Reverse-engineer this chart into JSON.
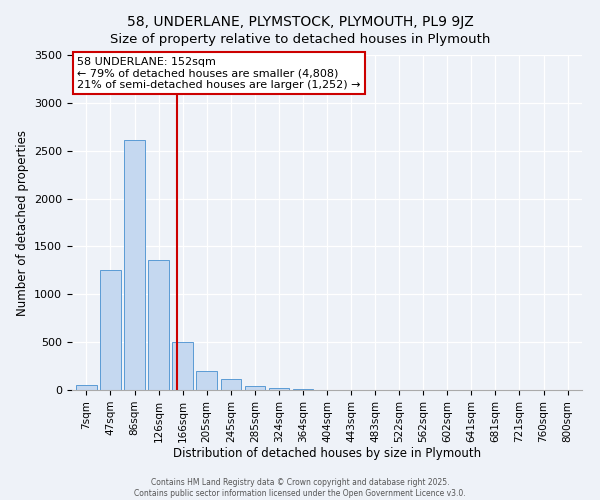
{
  "title": "58, UNDERLANE, PLYMSTOCK, PLYMOUTH, PL9 9JZ",
  "subtitle": "Size of property relative to detached houses in Plymouth",
  "xlabel": "Distribution of detached houses by size in Plymouth",
  "ylabel": "Number of detached properties",
  "bar_labels": [
    "7sqm",
    "47sqm",
    "86sqm",
    "126sqm",
    "166sqm",
    "205sqm",
    "245sqm",
    "285sqm",
    "324sqm",
    "364sqm",
    "404sqm",
    "443sqm",
    "483sqm",
    "522sqm",
    "562sqm",
    "602sqm",
    "641sqm",
    "681sqm",
    "721sqm",
    "760sqm",
    "800sqm"
  ],
  "bar_values": [
    55,
    1255,
    2615,
    1360,
    500,
    200,
    110,
    45,
    20,
    8,
    4,
    2,
    1,
    0,
    0,
    0,
    0,
    0,
    0,
    0,
    0
  ],
  "bar_color": "#c5d8f0",
  "bar_edge_color": "#5b9bd5",
  "vline_x": 3.77,
  "vline_color": "#cc0000",
  "annotation_line1": "58 UNDERLANE: 152sqm",
  "annotation_line2": "← 79% of detached houses are smaller (4,808)",
  "annotation_line3": "21% of semi-detached houses are larger (1,252) →",
  "annotation_box_color": "#cc0000",
  "ylim": [
    0,
    3500
  ],
  "yticks": [
    0,
    500,
    1000,
    1500,
    2000,
    2500,
    3000,
    3500
  ],
  "footer1": "Contains HM Land Registry data © Crown copyright and database right 2025.",
  "footer2": "Contains public sector information licensed under the Open Government Licence v3.0.",
  "background_color": "#eef2f8",
  "title_fontsize": 10,
  "xlabel_fontsize": 8.5,
  "ylabel_fontsize": 8.5,
  "tick_fontsize": 7.5,
  "annotation_fontsize": 8,
  "footer_fontsize": 5.5
}
